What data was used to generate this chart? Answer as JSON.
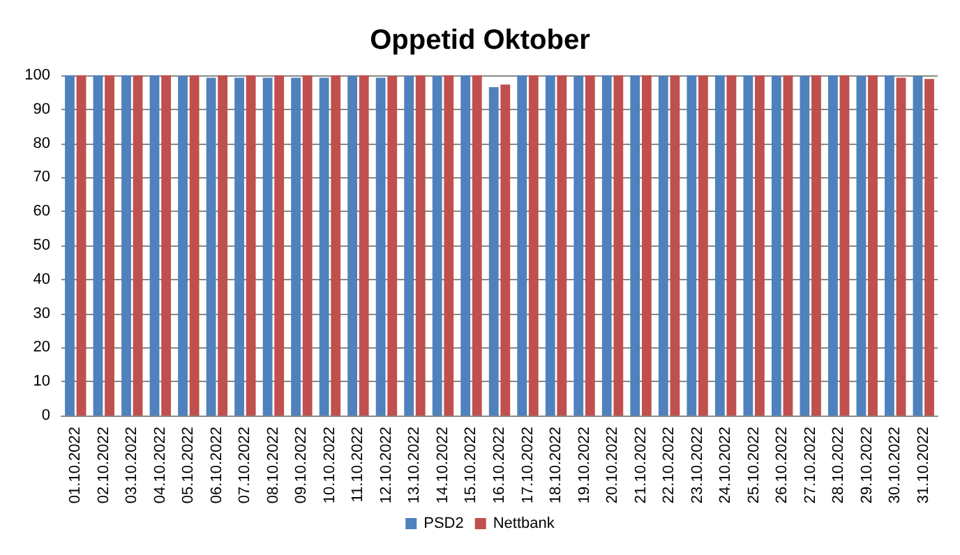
{
  "chart_data": {
    "type": "bar",
    "title": "Oppetid Oktober",
    "categories": [
      "01.10.2022",
      "02.10.2022",
      "03.10.2022",
      "04.10.2022",
      "05.10.2022",
      "06.10.2022",
      "07.10.2022",
      "08.10.2022",
      "09.10.2022",
      "10.10.2022",
      "11.10.2022",
      "12.10.2022",
      "13.10.2022",
      "14.10.2022",
      "15.10.2022",
      "16.10.2022",
      "17.10.2022",
      "18.10.2022",
      "19.10.2022",
      "20.10.2022",
      "21.10.2022",
      "22.10.2022",
      "23.10.2022",
      "24.10.2022",
      "25.10.2022",
      "26.10.2022",
      "27.10.2022",
      "28.10.2022",
      "29.10.2022",
      "30.10.2022",
      "31.10.2022"
    ],
    "series": [
      {
        "name": "PSD2",
        "color": "#4f81bd",
        "values": [
          100,
          100,
          100,
          100,
          99.8,
          99.3,
          99.3,
          99.3,
          99.3,
          99.3,
          99.8,
          99.3,
          99.8,
          99.8,
          100,
          96.5,
          100,
          100,
          99.8,
          100,
          100,
          99.8,
          100,
          100,
          100,
          99.8,
          99.8,
          100,
          99.8,
          100,
          99.8
        ]
      },
      {
        "name": "Nettbank",
        "color": "#c0504d",
        "values": [
          100,
          100,
          100,
          100,
          100,
          100,
          100,
          100,
          100,
          100,
          100,
          99.8,
          100,
          100,
          100,
          97.3,
          100,
          100,
          100,
          100,
          100,
          100,
          100,
          100,
          100,
          100,
          100,
          100,
          100,
          99.3,
          98.9
        ]
      }
    ],
    "ylim": [
      0,
      100
    ],
    "yticks": [
      0,
      10,
      20,
      30,
      40,
      50,
      60,
      70,
      80,
      90,
      100
    ],
    "grid": "y",
    "legend": "bottom"
  }
}
